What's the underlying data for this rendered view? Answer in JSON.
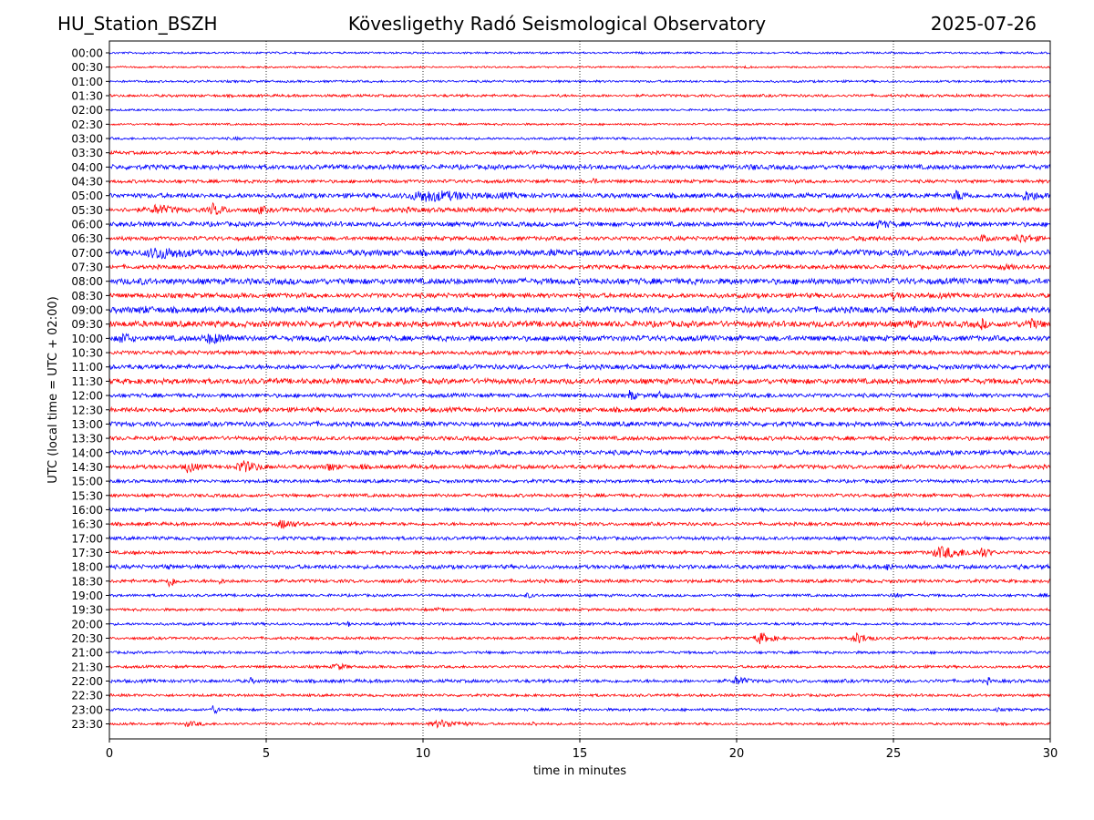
{
  "header": {
    "station": "HU_Station_BSZH",
    "observatory": "Kövesligethy Radó Seismological Observatory",
    "date": "2025-07-26"
  },
  "chart_data": {
    "type": "line",
    "title": "Kövesligethy Radó Seismological Observatory",
    "xlabel": "time in minutes",
    "ylabel": "UTC (local time = UTC + 02:00)",
    "xlim": [
      0,
      30
    ],
    "xticks": [
      "0",
      "5",
      "10",
      "15",
      "20",
      "25",
      "30"
    ],
    "grid": "vertical dotted",
    "colors": [
      "#0000ff",
      "#ff0000"
    ],
    "rows": [
      {
        "label": "00:00",
        "noise": 0.15,
        "events": [
          {
            "t": 1.0,
            "a": 0.25,
            "w": 0.2
          }
        ]
      },
      {
        "label": "00:30",
        "noise": 0.13,
        "events": [
          {
            "t": 20.3,
            "a": 0.3,
            "w": 0.25
          }
        ]
      },
      {
        "label": "01:00",
        "noise": 0.17,
        "events": [
          {
            "t": 2.7,
            "a": 0.2,
            "w": 0.3
          }
        ]
      },
      {
        "label": "01:30",
        "noise": 0.2,
        "events": [
          {
            "t": 14.3,
            "a": 0.3,
            "w": 0.2
          },
          {
            "t": 7.5,
            "a": 0.25,
            "w": 0.6
          }
        ]
      },
      {
        "label": "02:00",
        "noise": 0.15,
        "events": []
      },
      {
        "label": "02:30",
        "noise": 0.15,
        "events": []
      },
      {
        "label": "03:00",
        "noise": 0.18,
        "events": [
          {
            "t": 4.0,
            "a": 0.3,
            "w": 0.4
          },
          {
            "t": 18.5,
            "a": 0.25,
            "w": 0.3
          }
        ]
      },
      {
        "label": "03:30",
        "noise": 0.25,
        "events": [
          {
            "t": 13.5,
            "a": 0.3,
            "w": 0.5
          },
          {
            "t": 29.5,
            "a": 0.35,
            "w": 0.5
          }
        ]
      },
      {
        "label": "04:00",
        "noise": 0.35,
        "events": [
          {
            "t": 20.5,
            "a": 0.5,
            "w": 0.5
          },
          {
            "t": 7.8,
            "a": 0.4,
            "w": 0.3
          }
        ]
      },
      {
        "label": "04:30",
        "noise": 0.25,
        "events": [
          {
            "t": 15.4,
            "a": 0.55,
            "w": 0.25
          },
          {
            "t": 21.8,
            "a": 0.4,
            "w": 0.3
          }
        ]
      },
      {
        "label": "05:00",
        "noise": 0.35,
        "events": [
          {
            "t": 10.0,
            "a": 0.9,
            "w": 2.6
          },
          {
            "t": 12.5,
            "a": 0.5,
            "w": 1.5
          },
          {
            "t": 27.0,
            "a": 0.8,
            "w": 0.7
          },
          {
            "t": 29.2,
            "a": 0.8,
            "w": 0.9
          }
        ]
      },
      {
        "label": "05:30",
        "noise": 0.35,
        "events": [
          {
            "t": 1.5,
            "a": 0.8,
            "w": 1.0
          },
          {
            "t": 3.3,
            "a": 0.9,
            "w": 0.6
          },
          {
            "t": 4.8,
            "a": 0.7,
            "w": 0.4
          },
          {
            "t": 9.5,
            "a": 0.4,
            "w": 1.0
          }
        ]
      },
      {
        "label": "06:00",
        "noise": 0.35,
        "events": [
          {
            "t": 24.5,
            "a": 0.6,
            "w": 1.2
          },
          {
            "t": 27.0,
            "a": 0.6,
            "w": 0.4
          }
        ]
      },
      {
        "label": "06:30",
        "noise": 0.3,
        "events": [
          {
            "t": 27.8,
            "a": 0.7,
            "w": 0.3
          },
          {
            "t": 29.0,
            "a": 0.7,
            "w": 1.0
          },
          {
            "t": 24.0,
            "a": 0.4,
            "w": 1.5
          }
        ]
      },
      {
        "label": "07:00",
        "noise": 0.45,
        "events": [
          {
            "t": 1.5,
            "a": 0.95,
            "w": 1.8
          },
          {
            "t": 3.5,
            "a": 0.6,
            "w": 0.6
          },
          {
            "t": 14.0,
            "a": 0.6,
            "w": 0.5
          }
        ]
      },
      {
        "label": "07:30",
        "noise": 0.3,
        "events": [
          {
            "t": 28.5,
            "a": 0.45,
            "w": 1.2
          }
        ]
      },
      {
        "label": "08:00",
        "noise": 0.45,
        "events": [
          {
            "t": 1.0,
            "a": 0.5,
            "w": 1.0
          }
        ]
      },
      {
        "label": "08:30",
        "noise": 0.35,
        "events": [
          {
            "t": 25.0,
            "a": 0.6,
            "w": 0.5
          },
          {
            "t": 26.5,
            "a": 0.5,
            "w": 0.4
          }
        ]
      },
      {
        "label": "09:00",
        "noise": 0.45,
        "events": [
          {
            "t": 1.0,
            "a": 0.6,
            "w": 1.2
          },
          {
            "t": 16.5,
            "a": 0.5,
            "w": 0.3
          }
        ]
      },
      {
        "label": "09:30",
        "noise": 0.45,
        "events": [
          {
            "t": 27.8,
            "a": 0.9,
            "w": 0.3
          },
          {
            "t": 29.3,
            "a": 0.85,
            "w": 0.8
          },
          {
            "t": 25.5,
            "a": 0.6,
            "w": 1.2
          }
        ]
      },
      {
        "label": "10:00",
        "noise": 0.4,
        "events": [
          {
            "t": 0.4,
            "a": 0.95,
            "w": 0.5
          },
          {
            "t": 3.2,
            "a": 0.8,
            "w": 1.5
          },
          {
            "t": 6.6,
            "a": 0.7,
            "w": 0.3
          }
        ]
      },
      {
        "label": "10:30",
        "noise": 0.3,
        "events": [
          {
            "t": 25.3,
            "a": 0.4,
            "w": 0.3
          }
        ]
      },
      {
        "label": "11:00",
        "noise": 0.35,
        "events": [
          {
            "t": 20.5,
            "a": 0.45,
            "w": 0.6
          }
        ]
      },
      {
        "label": "11:30",
        "noise": 0.4,
        "events": [
          {
            "t": 5.3,
            "a": 0.45,
            "w": 0.3
          }
        ]
      },
      {
        "label": "12:00",
        "noise": 0.3,
        "events": [
          {
            "t": 16.6,
            "a": 0.95,
            "w": 0.25
          },
          {
            "t": 17.5,
            "a": 0.6,
            "w": 0.6
          },
          {
            "t": 18.7,
            "a": 0.5,
            "w": 0.3
          },
          {
            "t": 21.0,
            "a": 0.4,
            "w": 0.8
          }
        ]
      },
      {
        "label": "12:30",
        "noise": 0.35,
        "events": []
      },
      {
        "label": "13:00",
        "noise": 0.35,
        "events": [
          {
            "t": 6.5,
            "a": 0.4,
            "w": 0.4
          }
        ]
      },
      {
        "label": "13:30",
        "noise": 0.3,
        "events": []
      },
      {
        "label": "14:00",
        "noise": 0.35,
        "events": [
          {
            "t": 0.2,
            "a": 0.4,
            "w": 0.3
          }
        ]
      },
      {
        "label": "14:30",
        "noise": 0.3,
        "events": [
          {
            "t": 2.5,
            "a": 0.9,
            "w": 0.5
          },
          {
            "t": 4.2,
            "a": 0.95,
            "w": 0.8
          },
          {
            "t": 7.0,
            "a": 0.7,
            "w": 0.5
          },
          {
            "t": 8.0,
            "a": 0.5,
            "w": 0.4
          }
        ]
      },
      {
        "label": "15:00",
        "noise": 0.25,
        "events": [
          {
            "t": 24.5,
            "a": 0.3,
            "w": 0.6
          }
        ]
      },
      {
        "label": "15:30",
        "noise": 0.25,
        "events": []
      },
      {
        "label": "16:00",
        "noise": 0.25,
        "events": [
          {
            "t": 17.0,
            "a": 0.35,
            "w": 0.3
          }
        ]
      },
      {
        "label": "16:30",
        "noise": 0.25,
        "events": [
          {
            "t": 5.5,
            "a": 0.7,
            "w": 0.8
          },
          {
            "t": 1.2,
            "a": 0.35,
            "w": 0.3
          },
          {
            "t": 26.0,
            "a": 0.5,
            "w": 0.3
          }
        ]
      },
      {
        "label": "17:00",
        "noise": 0.25,
        "events": [
          {
            "t": 6.5,
            "a": 0.3,
            "w": 0.3
          }
        ]
      },
      {
        "label": "17:30",
        "noise": 0.25,
        "events": [
          {
            "t": 26.5,
            "a": 0.85,
            "w": 1.5
          },
          {
            "t": 27.8,
            "a": 0.9,
            "w": 0.4
          },
          {
            "t": 0.8,
            "a": 0.35,
            "w": 0.3
          }
        ]
      },
      {
        "label": "18:00",
        "noise": 0.3,
        "events": [
          {
            "t": 1.8,
            "a": 0.6,
            "w": 0.25
          },
          {
            "t": 24.8,
            "a": 0.7,
            "w": 0.3
          },
          {
            "t": 29.0,
            "a": 0.5,
            "w": 0.3
          }
        ]
      },
      {
        "label": "18:30",
        "noise": 0.25,
        "events": [
          {
            "t": 1.9,
            "a": 0.95,
            "w": 0.3
          },
          {
            "t": 3.5,
            "a": 0.4,
            "w": 0.5
          }
        ]
      },
      {
        "label": "19:00",
        "noise": 0.2,
        "events": [
          {
            "t": 13.3,
            "a": 0.4,
            "w": 0.5
          },
          {
            "t": 25.0,
            "a": 0.4,
            "w": 0.6
          },
          {
            "t": 29.8,
            "a": 0.3,
            "w": 0.2
          }
        ]
      },
      {
        "label": "19:30",
        "noise": 0.2,
        "events": [
          {
            "t": 10.5,
            "a": 0.35,
            "w": 0.4
          }
        ]
      },
      {
        "label": "20:00",
        "noise": 0.2,
        "events": [
          {
            "t": 7.6,
            "a": 0.45,
            "w": 0.2
          },
          {
            "t": 23.0,
            "a": 0.35,
            "w": 0.2
          }
        ]
      },
      {
        "label": "20:30",
        "noise": 0.2,
        "events": [
          {
            "t": 20.7,
            "a": 0.85,
            "w": 0.6
          },
          {
            "t": 23.8,
            "a": 0.8,
            "w": 0.6
          },
          {
            "t": 28.9,
            "a": 0.45,
            "w": 0.3
          }
        ]
      },
      {
        "label": "21:00",
        "noise": 0.2,
        "events": [
          {
            "t": 7.9,
            "a": 0.35,
            "w": 0.3
          }
        ]
      },
      {
        "label": "21:30",
        "noise": 0.2,
        "events": [
          {
            "t": 7.2,
            "a": 0.6,
            "w": 0.5
          },
          {
            "t": 20.9,
            "a": 0.35,
            "w": 0.2
          }
        ]
      },
      {
        "label": "22:00",
        "noise": 0.25,
        "events": [
          {
            "t": 4.5,
            "a": 0.5,
            "w": 0.3
          },
          {
            "t": 20.0,
            "a": 0.75,
            "w": 0.5
          },
          {
            "t": 28.0,
            "a": 0.6,
            "w": 0.2
          }
        ]
      },
      {
        "label": "22:30",
        "noise": 0.2,
        "events": []
      },
      {
        "label": "23:00",
        "noise": 0.2,
        "events": [
          {
            "t": 3.3,
            "a": 0.7,
            "w": 0.3
          },
          {
            "t": 28.3,
            "a": 0.35,
            "w": 0.3
          },
          {
            "t": 14.8,
            "a": 0.3,
            "w": 0.2
          }
        ]
      },
      {
        "label": "23:30",
        "noise": 0.18,
        "events": [
          {
            "t": 2.5,
            "a": 0.4,
            "w": 1.0
          },
          {
            "t": 10.5,
            "a": 0.6,
            "w": 1.2
          },
          {
            "t": 13.5,
            "a": 0.35,
            "w": 0.4
          }
        ]
      }
    ]
  }
}
